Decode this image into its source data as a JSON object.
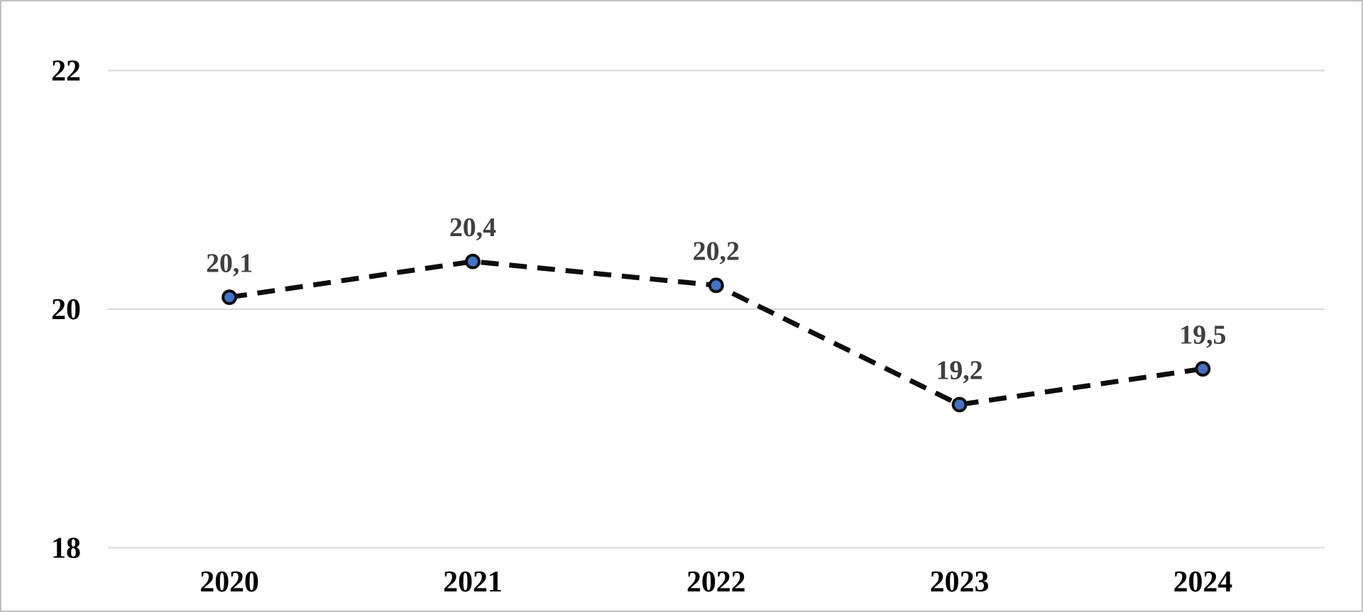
{
  "chart_data": {
    "type": "line",
    "categories": [
      "2020",
      "2021",
      "2022",
      "2023",
      "2024"
    ],
    "values": [
      20.1,
      20.4,
      20.2,
      19.2,
      19.5
    ],
    "point_labels": [
      "20,1",
      "20,4",
      "20,2",
      "19,2",
      "19,5"
    ],
    "series_name": "",
    "title": "",
    "xlabel": "",
    "ylabel": "",
    "ylim": [
      18,
      22
    ],
    "yticks": [
      22,
      20,
      18
    ],
    "ytick_labels": [
      "22",
      "20",
      "18"
    ],
    "grid": "horizontal",
    "legend": "none",
    "line_style": "dashed",
    "marker": "circle",
    "colors": {
      "line": "#0d0d0d",
      "marker_fill": "#4472c4",
      "marker_stroke": "#0d0d0d",
      "data_label": "#404040",
      "axis_label": "#000000",
      "gridline": "#d9d9d9",
      "background": "#ffffff",
      "frame_border": "#c0c0c0"
    }
  }
}
